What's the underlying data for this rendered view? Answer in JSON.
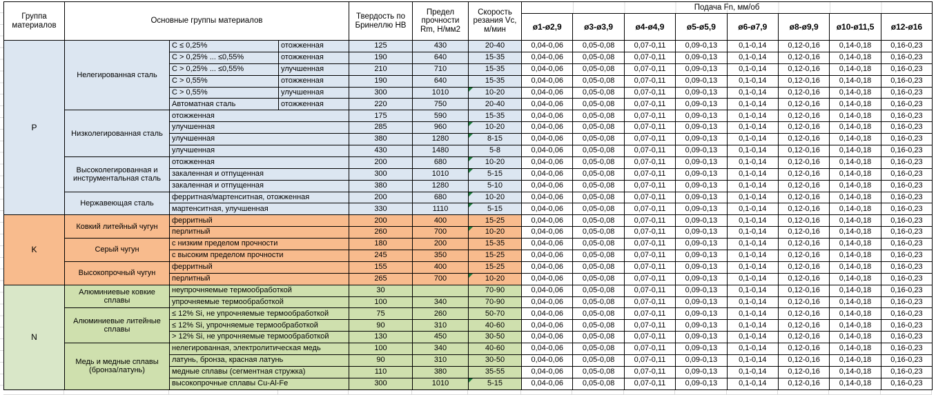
{
  "header": {
    "col_group": "Группа материалов",
    "col_materials": "Основные группы материалов",
    "col_hardness": "Твердость по Бринеллю HB",
    "col_strength": "Предел прочности Rm, Н/мм2",
    "col_speed": "Скорость резания Vc, м/мин",
    "feed_title": "Подача Fn, мм/об",
    "feed_cols": [
      "ø1-ø2,9",
      "ø3-ø3,9",
      "ø4-ø4,9",
      "ø5-ø5,9",
      "ø6-ø7,9",
      "ø8-ø9,9",
      "ø10-ø11,5",
      "ø12-ø16"
    ]
  },
  "feed_values": [
    "0,04-0,06",
    "0,05-0,08",
    "0,07-0,11",
    "0,09-0,13",
    "0,1-0,14",
    "0,12-0,16",
    "0,14-0,18",
    "0,16-0,23"
  ],
  "colors": {
    "section_blue": "#dce6f1",
    "section_blue_label": "#dce6f1",
    "section_orange": "#f8bb8d",
    "section_orange_label": "#f8bb8d",
    "section_green": "#cfe0ae",
    "section_green_label": "#d9e7c8",
    "marker_green": "#1e7d3c",
    "grid_line": "#d9d9d9",
    "cell_border": "#000000"
  },
  "sections": [
    {
      "group": "P",
      "bg": "#dce6f1",
      "label_bg": "#dce6f1",
      "subgroups": [
        {
          "name": "Нелегированная сталь",
          "rows": [
            {
              "mat_a": "C ≤ 0,25%",
              "mat_b": "отожженная",
              "hb": "125",
              "rm": "430",
              "vc": "20-40",
              "marker": false
            },
            {
              "mat_a": "C > 0,25% ... ≤0,55%",
              "mat_b": "отожженная",
              "hb": "190",
              "rm": "640",
              "vc": "15-35",
              "marker": false
            },
            {
              "mat_a": "C > 0,25% ... ≤0,55%",
              "mat_b": "улучшенная",
              "hb": "210",
              "rm": "710",
              "vc": "15-35",
              "marker": false
            },
            {
              "mat_a": "C > 0,55%",
              "mat_b": "отожженная",
              "hb": "190",
              "rm": "640",
              "vc": "15-35",
              "marker": false
            },
            {
              "mat_a": "C > 0,55%",
              "mat_b": "улучшенная",
              "hb": "300",
              "rm": "1010",
              "vc": "10-20",
              "marker": true
            },
            {
              "mat_a": "Автоматная сталь",
              "mat_b": "отожженная",
              "hb": "220",
              "rm": "750",
              "vc": "20-40",
              "marker": false
            }
          ]
        },
        {
          "name": "Низколегированная сталь",
          "rows": [
            {
              "mat": "отожженная",
              "hb": "175",
              "rm": "590",
              "vc": "15-35",
              "marker": false
            },
            {
              "mat": "улучшенная",
              "hb": "285",
              "rm": "960",
              "vc": "10-20",
              "marker": true
            },
            {
              "mat": "улучшенная",
              "hb": "380",
              "rm": "1280",
              "vc": "8-15",
              "marker": true
            },
            {
              "mat": "улучшенная",
              "hb": "430",
              "rm": "1480",
              "vc": "5-8",
              "marker": false
            }
          ]
        },
        {
          "name": "Высоколегированная и инструментальная сталь",
          "rows": [
            {
              "mat": "отожженная",
              "hb": "200",
              "rm": "680",
              "vc": "10-20",
              "marker": true
            },
            {
              "mat": "закаленная и отпущенная",
              "hb": "300",
              "rm": "1010",
              "vc": "5-15",
              "marker": true
            },
            {
              "mat": "закаленная и отпущенная",
              "hb": "380",
              "rm": "1280",
              "vc": "5-10",
              "marker": false
            }
          ]
        },
        {
          "name": "Нержавеющая сталь",
          "rows": [
            {
              "mat": "ферритная/мартенситная, отожженная",
              "hb": "200",
              "rm": "680",
              "vc": "10-20",
              "marker": true
            },
            {
              "mat": "мартенситная, улучшенная",
              "hb": "330",
              "rm": "1110",
              "vc": "5-15",
              "marker": true
            }
          ]
        }
      ]
    },
    {
      "group": "K",
      "bg": "#f8bb8d",
      "label_bg": "#f8bb8d",
      "subgroups": [
        {
          "name": "Ковкий литейный чугун",
          "rows": [
            {
              "mat": "ферритный",
              "hb": "200",
              "rm": "400",
              "vc": "15-25",
              "marker": false
            },
            {
              "mat": "перлитный",
              "hb": "260",
              "rm": "700",
              "vc": "10-20",
              "marker": true
            }
          ]
        },
        {
          "name": "Серый чугун",
          "rows": [
            {
              "mat": "с низким пределом прочности",
              "hb": "180",
              "rm": "200",
              "vc": "15-35",
              "marker": false
            },
            {
              "mat": "с высоким пределом прочности",
              "hb": "245",
              "rm": "350",
              "vc": "15-25",
              "marker": false
            }
          ]
        },
        {
          "name": "Высокопрочный чугун",
          "rows": [
            {
              "mat": "ферритный",
              "hb": "155",
              "rm": "400",
              "vc": "15-25",
              "marker": false
            },
            {
              "mat": "перлитный",
              "hb": "265",
              "rm": "700",
              "vc": "10-20",
              "marker": true
            }
          ]
        }
      ]
    },
    {
      "group": "N",
      "bg": "#cfe0ae",
      "label_bg": "#d9e7c8",
      "subgroups": [
        {
          "name": "Алюминиевые ковкие сплавы",
          "rows": [
            {
              "mat": "неупрочняемые термообработкой",
              "hb": "30",
              "rm": "",
              "vc": "70-90",
              "marker": false
            },
            {
              "mat": "упрочняемые термообработкой",
              "hb": "100",
              "rm": "340",
              "vc": "70-90",
              "marker": false
            }
          ]
        },
        {
          "name": "Алюминиевые литейные сплавы",
          "rows": [
            {
              "mat": "≤ 12% Si, не упрочняемые термообработкой",
              "hb": "75",
              "rm": "260",
              "vc": "50-70",
              "marker": false
            },
            {
              "mat": "≤ 12% Si, упрочняемые термообработкой",
              "hb": "90",
              "rm": "310",
              "vc": "40-60",
              "marker": false
            },
            {
              "mat": "> 12% Si, не упрочняемые термообработкой",
              "hb": "130",
              "rm": "450",
              "vc": "30-50",
              "marker": false
            }
          ]
        },
        {
          "name": "Медь и медные сплавы (бронза/латунь)",
          "rows": [
            {
              "mat": "нелегированная, электролитическая медь",
              "hb": "100",
              "rm": "340",
              "vc": "40-60",
              "marker": false
            },
            {
              "mat": "латунь, бронза, красная латунь",
              "hb": "90",
              "rm": "310",
              "vc": "30-50",
              "marker": false
            },
            {
              "mat": "медные сплавы (сегментная стружка)",
              "hb": "110",
              "rm": "380",
              "vc": "35-55",
              "marker": false
            },
            {
              "mat": "высокопрочные сплавы Cu-Al-Fe",
              "hb": "300",
              "rm": "1010",
              "vc": "5-15",
              "marker": true
            }
          ]
        }
      ]
    }
  ]
}
